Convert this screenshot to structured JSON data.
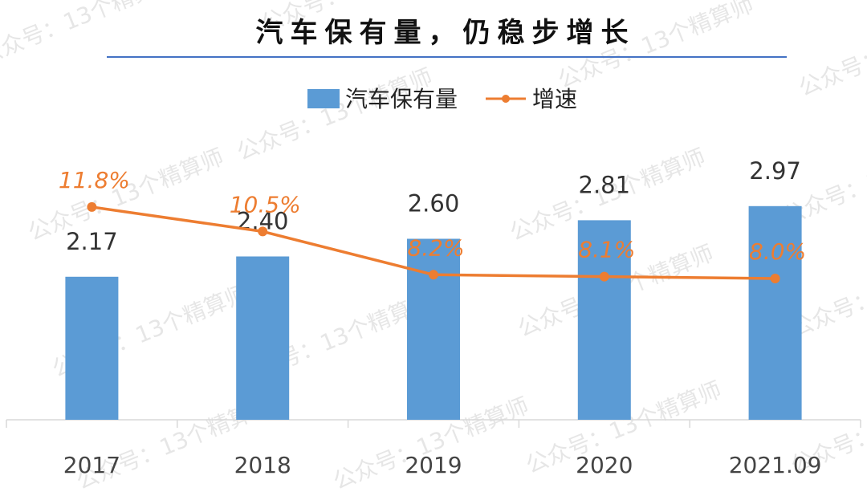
{
  "title": "汽车保有量，仍稳步增长",
  "colors": {
    "bar": "#5B9BD5",
    "line": "#ED7D31",
    "title_rule": "#4472C4",
    "axis": "#D9D9D9"
  },
  "legend": {
    "bar_label": "汽车保有量",
    "line_label": "增速"
  },
  "watermark": "公众号：13个精算师",
  "chart_data": {
    "type": "bar",
    "categories": [
      "2017",
      "2018",
      "2019",
      "2020",
      "2021.09"
    ],
    "series": [
      {
        "name": "汽车保有量",
        "type": "bar",
        "values": [
          2.17,
          2.4,
          2.6,
          2.81,
          2.97
        ],
        "labels": [
          "2.17",
          "2.40",
          "2.60",
          "2.81",
          "2.97"
        ]
      },
      {
        "name": "增速",
        "type": "line",
        "values": [
          11.8,
          10.5,
          8.2,
          8.1,
          8.0
        ],
        "labels": [
          "11.8%",
          "10.5%",
          "8.2%",
          "8.1%",
          "8.0%"
        ]
      }
    ],
    "title": "汽车保有量，仍稳步增长",
    "legend_position": "top",
    "grid": false
  }
}
